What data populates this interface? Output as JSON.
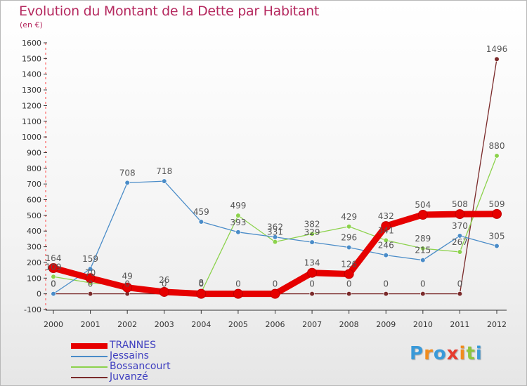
{
  "title": "Evolution du Montant de la Dette par Habitant",
  "unit_label": "(en €)",
  "brand": {
    "letters": [
      "P",
      "r",
      "o",
      "x",
      "i",
      "t",
      "i"
    ],
    "colors": [
      "#3a9ad9",
      "#f08c1e",
      "#3a9ad9",
      "#e63c2e",
      "#f08c1e",
      "#8cc63e",
      "#3a9ad9"
    ]
  },
  "chart_data": {
    "type": "line",
    "x": [
      "2000",
      "2001",
      "2002",
      "2003",
      "2004",
      "2005",
      "2006",
      "2007",
      "2008",
      "2009",
      "2010",
      "2011",
      "2012"
    ],
    "ylim": [
      -100,
      1600
    ],
    "yticks": [
      -100,
      0,
      100,
      200,
      300,
      400,
      500,
      600,
      700,
      800,
      900,
      1000,
      1100,
      1200,
      1300,
      1400,
      1500,
      1600
    ],
    "grid": false,
    "legend_position": "bottom-left",
    "series": [
      {
        "name": "TRANNES",
        "color": "#e60000",
        "values": [
          164,
          100,
          40,
          12,
          0,
          0,
          0,
          134,
          126,
          432,
          504,
          508,
          509
        ],
        "labels": [
          "164",
          "",
          "",
          "",
          "",
          "",
          "",
          "134",
          "126",
          "432",
          "504",
          "508",
          "509"
        ]
      },
      {
        "name": "Jessains",
        "color": "#4a8cc8",
        "values": [
          0,
          159,
          708,
          718,
          459,
          393,
          362,
          329,
          296,
          246,
          215,
          370,
          305
        ],
        "labels": [
          "0",
          "159",
          "708",
          "718",
          "459",
          "393",
          "362",
          "329",
          "296",
          "246",
          "215",
          "370",
          "305"
        ]
      },
      {
        "name": "Bossancourt",
        "color": "#8cd24c",
        "values": [
          109,
          70,
          49,
          26,
          8,
          499,
          331,
          382,
          429,
          341,
          289,
          267,
          880
        ],
        "labels": [
          "109",
          "70",
          "49",
          "26",
          "8",
          "499",
          "331",
          "382",
          "429",
          "341",
          "289",
          "267",
          "880"
        ]
      },
      {
        "name": "Juvanzé",
        "color": "#7a2a2a",
        "values": [
          0,
          0,
          0,
          0,
          0,
          0,
          0,
          0,
          0,
          0,
          0,
          0,
          1496
        ],
        "labels": [
          "0",
          "0",
          "0",
          "0",
          "0",
          "0",
          "0",
          "0",
          "0",
          "0",
          "0",
          "0",
          "1496"
        ]
      }
    ]
  }
}
